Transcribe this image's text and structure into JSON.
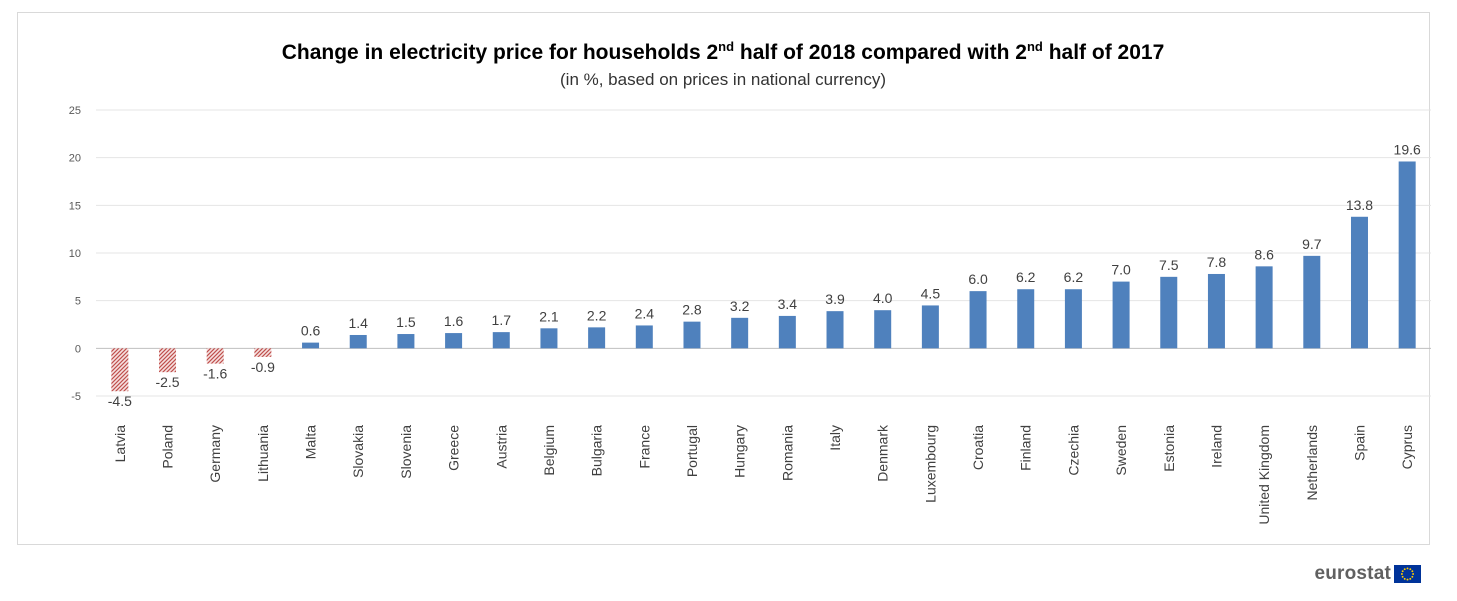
{
  "chart_data": {
    "type": "bar",
    "title": {
      "part1": "Change in electricity price for households 2",
      "sup1": "nd",
      "part2": " half of 2018 compared with 2",
      "sup2": "nd",
      "part3": " half of 2017"
    },
    "subtitle": "(in %, based on prices in national currency)",
    "xlabel": "",
    "ylabel": "",
    "ylim": [
      -5,
      25
    ],
    "yticks": [
      25,
      20,
      15,
      10,
      5,
      0,
      -5
    ],
    "grid": true,
    "categories": [
      "Latvia",
      "Poland",
      "Germany",
      "Lithuania",
      "Malta",
      "Slovakia",
      "Slovenia",
      "Greece",
      "Austria",
      "Belgium",
      "Bulgaria",
      "France",
      "Portugal",
      "Hungary",
      "Romania",
      "Italy",
      "Denmark",
      "Luxembourg",
      "Croatia",
      "Finland",
      "Czechia",
      "Sweden",
      "Estonia",
      "Ireland",
      "United Kingdom",
      "Netherlands",
      "Spain",
      "Cyprus"
    ],
    "values": [
      -4.5,
      -2.5,
      -1.6,
      -0.9,
      0.6,
      1.4,
      1.5,
      1.6,
      1.7,
      2.1,
      2.2,
      2.4,
      2.8,
      3.2,
      3.4,
      3.9,
      4.0,
      4.5,
      6.0,
      6.2,
      6.2,
      7.0,
      7.5,
      7.8,
      8.6,
      9.7,
      13.8,
      19.6
    ],
    "data_labels": [
      "-4.5",
      "-2.5",
      "-1.6",
      "-0.9",
      "0.6",
      "1.4",
      "1.5",
      "1.6",
      "1.7",
      "2.1",
      "2.2",
      "2.4",
      "2.8",
      "3.2",
      "3.4",
      "3.9",
      "4.0",
      "4.5",
      "6.0",
      "6.2",
      "6.2",
      "7.0",
      "7.5",
      "7.8",
      "8.6",
      "9.7",
      "13.8",
      "19.6"
    ],
    "colors": {
      "positive": "#4f81bd",
      "negative_hatch": "#c0504d",
      "grid": "#e4e4e4",
      "axis": "#bfbfbf",
      "text": "#404040",
      "title": "#000000"
    }
  },
  "logo": {
    "word": "eurostat",
    "flag_background": "#003399",
    "flag_stars": "#ffcc00"
  }
}
